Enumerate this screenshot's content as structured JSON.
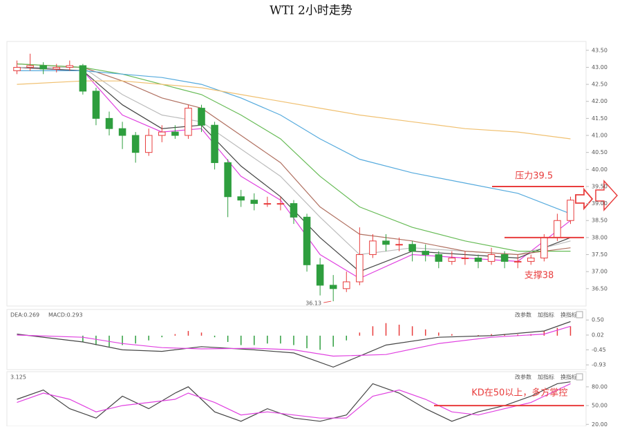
{
  "title": "WTI 2小时走势",
  "chart_data": [
    {
      "type": "candlestick",
      "open": [
        42.9,
        43.0,
        43.05,
        42.95,
        43.0,
        43.05,
        42.3,
        41.5,
        41.2,
        41.0,
        40.5,
        41.0,
        41.1,
        41.0,
        41.8,
        41.3,
        40.2,
        39.2,
        39.1,
        39.0,
        39.0,
        39.0,
        38.6,
        37.2,
        36.6,
        36.5,
        36.7,
        37.5,
        37.9,
        37.8,
        37.8,
        37.6,
        37.5,
        37.3,
        37.4,
        37.4,
        37.3,
        37.5,
        37.3,
        37.3,
        37.4,
        38.0,
        38.5
      ],
      "high": [
        43.2,
        43.4,
        43.15,
        43.1,
        43.2,
        43.1,
        42.4,
        41.7,
        41.4,
        41.1,
        41.2,
        41.3,
        41.3,
        41.9,
        41.9,
        41.4,
        40.3,
        39.4,
        39.3,
        39.2,
        39.2,
        39.1,
        38.7,
        37.4,
        36.9,
        37.0,
        38.3,
        38.1,
        38.1,
        38.0,
        37.9,
        37.8,
        37.6,
        37.6,
        37.6,
        37.5,
        37.7,
        37.6,
        37.5,
        37.5,
        38.1,
        38.7,
        39.2
      ],
      "low": [
        42.8,
        42.9,
        42.8,
        42.85,
        42.9,
        42.2,
        41.3,
        41.0,
        40.6,
        40.2,
        40.4,
        40.8,
        40.9,
        40.9,
        41.1,
        40.0,
        38.6,
        38.9,
        38.8,
        38.9,
        38.8,
        38.4,
        37.0,
        36.3,
        36.13,
        36.4,
        36.6,
        37.4,
        37.6,
        37.6,
        37.3,
        37.3,
        37.1,
        37.2,
        37.2,
        37.1,
        37.2,
        37.1,
        37.1,
        37.2,
        37.3,
        37.9,
        38.4
      ],
      "close": [
        43.0,
        43.05,
        42.95,
        43.0,
        43.05,
        42.3,
        41.5,
        41.2,
        41.0,
        40.5,
        41.0,
        41.1,
        41.0,
        41.8,
        41.3,
        40.2,
        39.2,
        39.1,
        39.0,
        39.0,
        39.0,
        38.6,
        37.2,
        36.6,
        36.5,
        36.7,
        37.5,
        37.9,
        37.8,
        37.8,
        37.6,
        37.5,
        37.3,
        37.4,
        37.4,
        37.3,
        37.5,
        37.3,
        37.3,
        37.4,
        38.0,
        38.5,
        39.1
      ],
      "up_color": "#e83c3c",
      "down_color": "#2e9e3e",
      "lines": [
        {
          "color": "#e040e0",
          "x": [
            0,
            5,
            8,
            11,
            14,
            17,
            20,
            23,
            26,
            30,
            34,
            38,
            42
          ],
          "values": [
            43.0,
            42.9,
            41.6,
            41.1,
            41.2,
            39.8,
            39.1,
            37.5,
            36.8,
            37.5,
            37.4,
            37.3,
            38.5
          ]
        },
        {
          "color": "#444444",
          "x": [
            0,
            5,
            8,
            11,
            14,
            17,
            20,
            23,
            26,
            30,
            34,
            38,
            42
          ],
          "values": [
            43.0,
            42.9,
            41.9,
            41.2,
            41.3,
            40.1,
            39.2,
            38.0,
            37.0,
            37.6,
            37.5,
            37.4,
            38.0
          ]
        },
        {
          "color": "#bbbbbb",
          "x": [
            0,
            5,
            8,
            11,
            14,
            17,
            20,
            23,
            26,
            30,
            34,
            38,
            42
          ],
          "values": [
            43.0,
            43.0,
            42.2,
            41.6,
            41.4,
            40.6,
            39.8,
            38.6,
            37.5,
            37.7,
            37.6,
            37.5,
            37.9
          ]
        },
        {
          "color": "#b07060",
          "x": [
            0,
            5,
            8,
            11,
            14,
            17,
            20,
            23,
            26,
            30,
            34,
            38,
            42
          ],
          "values": [
            43.1,
            43.0,
            42.6,
            42.1,
            41.8,
            41.0,
            40.2,
            38.9,
            38.1,
            37.9,
            37.6,
            37.5,
            37.7
          ]
        },
        {
          "color": "#66bb55",
          "x": [
            0,
            5,
            8,
            11,
            14,
            17,
            20,
            23,
            26,
            30,
            34,
            38,
            42
          ],
          "values": [
            43.1,
            43.0,
            42.8,
            42.5,
            42.2,
            41.6,
            40.9,
            39.8,
            38.9,
            38.3,
            37.9,
            37.6,
            37.6
          ]
        },
        {
          "color": "#55aadd",
          "x": [
            0,
            5,
            8,
            11,
            14,
            17,
            20,
            23,
            26,
            30,
            34,
            38,
            42
          ],
          "values": [
            42.9,
            42.9,
            42.8,
            42.7,
            42.5,
            42.1,
            41.6,
            40.9,
            40.3,
            39.9,
            39.6,
            39.3,
            38.7
          ]
        },
        {
          "color": "#f0c070",
          "x": [
            0,
            5,
            8,
            11,
            14,
            17,
            20,
            23,
            26,
            30,
            34,
            38,
            42
          ],
          "values": [
            42.5,
            42.6,
            42.6,
            42.5,
            42.4,
            42.2,
            42.0,
            41.8,
            41.6,
            41.4,
            41.2,
            41.1,
            40.9
          ]
        }
      ],
      "ylim": [
        36.05,
        43.76
      ],
      "yticks": [
        {
          "value": 36.5,
          "label": "36.50"
        },
        {
          "value": 37,
          "label": "37.00"
        },
        {
          "value": 37.5,
          "label": "37.50"
        },
        {
          "value": 38,
          "label": "38.00"
        },
        {
          "value": 38.5,
          "label": "38.50"
        },
        {
          "value": 39,
          "label": "39.00"
        },
        {
          "value": 39.5,
          "label": "39.50"
        },
        {
          "value": 40,
          "label": "40.00"
        },
        {
          "value": 40.5,
          "label": "40.50"
        },
        {
          "value": 41,
          "label": "41.00"
        },
        {
          "value": 41.5,
          "label": "41.50"
        },
        {
          "value": 42,
          "label": "42.00"
        },
        {
          "value": 42.5,
          "label": "42.50"
        },
        {
          "value": 43,
          "label": "43.00"
        },
        {
          "value": 43.5,
          "label": "43.50"
        }
      ],
      "annotations": [
        {
          "text": "压力39.5",
          "value": 39.5,
          "color": "#e83c3c"
        },
        {
          "text": "支撑38",
          "value": 38,
          "color": "#e83c3c"
        }
      ],
      "low_label": 36.13
    },
    {
      "type": "macd",
      "legend": [
        "DEA:0.269",
        "MACD:0.293"
      ],
      "buttons": [
        "改参数",
        "加指标",
        "换指标"
      ],
      "bars": [
        0,
        0,
        0,
        0,
        0,
        -0.2,
        -0.3,
        -0.35,
        -0.3,
        -0.25,
        -0.15,
        -0.05,
        0.05,
        0.15,
        0.1,
        -0.05,
        -0.2,
        -0.3,
        -0.3,
        -0.25,
        -0.25,
        -0.3,
        -0.4,
        -0.45,
        -0.35,
        -0.15,
        0.1,
        0.3,
        0.4,
        0.35,
        0.3,
        0.2,
        0.1,
        0.05,
        0,
        0.02,
        0.05,
        0.05,
        0.04,
        0.05,
        0.15,
        0.25,
        0.3
      ],
      "up_color": "#e83c3c",
      "down_color": "#2e9e3e",
      "lines": [
        {
          "color": "#444444",
          "x": [
            0,
            5,
            8,
            11,
            14,
            18,
            21,
            24,
            28,
            32,
            36,
            40,
            42
          ],
          "values": [
            0.05,
            -0.2,
            -0.45,
            -0.5,
            -0.35,
            -0.45,
            -0.55,
            -1.0,
            -0.3,
            -0.05,
            0.0,
            0.15,
            0.45
          ]
        },
        {
          "color": "#e040e0",
          "x": [
            0,
            5,
            8,
            11,
            14,
            18,
            21,
            24,
            28,
            32,
            36,
            40,
            42
          ],
          "values": [
            0.02,
            -0.05,
            -0.25,
            -0.38,
            -0.42,
            -0.4,
            -0.45,
            -0.65,
            -0.6,
            -0.25,
            -0.05,
            0.05,
            0.3
          ]
        }
      ],
      "ylim": [
        -1.08,
        0.79
      ],
      "yticks": [
        {
          "value": 0.5,
          "label": "0.50"
        },
        {
          "value": 0.02,
          "label": "0.02"
        },
        {
          "value": -0.45,
          "label": "-0.45"
        },
        {
          "value": -0.93,
          "label": "-0.93"
        }
      ]
    },
    {
      "type": "kd",
      "legend": [
        "3.125"
      ],
      "buttons": [
        "改参数",
        "加指标",
        "换指标"
      ],
      "lines": [
        {
          "color": "#444444",
          "x": [
            0,
            2,
            4,
            6,
            8,
            10,
            12,
            13,
            15,
            17,
            19,
            21,
            23,
            25,
            27,
            29,
            31,
            33,
            35,
            37,
            39,
            41,
            42
          ],
          "values": [
            60,
            75,
            45,
            30,
            65,
            45,
            70,
            80,
            40,
            25,
            45,
            30,
            25,
            35,
            85,
            70,
            45,
            25,
            40,
            50,
            65,
            85,
            88
          ]
        },
        {
          "color": "#e040e0",
          "x": [
            0,
            2,
            4,
            6,
            8,
            10,
            12,
            13,
            15,
            17,
            19,
            21,
            23,
            25,
            27,
            29,
            31,
            33,
            35,
            37,
            39,
            41,
            42
          ],
          "values": [
            55,
            70,
            60,
            40,
            50,
            55,
            60,
            70,
            55,
            35,
            40,
            35,
            30,
            30,
            65,
            75,
            60,
            40,
            35,
            45,
            55,
            75,
            85
          ]
        }
      ],
      "ylim": [
        17,
        102
      ],
      "yticks": [
        {
          "value": 20,
          "label": "20.00"
        },
        {
          "value": 50,
          "label": "50.00"
        },
        {
          "value": 80,
          "label": "80.00"
        }
      ],
      "annotations": [
        {
          "text": "KD在50以上，多方掌控",
          "value": 50,
          "color": "#e83c3c"
        }
      ]
    }
  ]
}
